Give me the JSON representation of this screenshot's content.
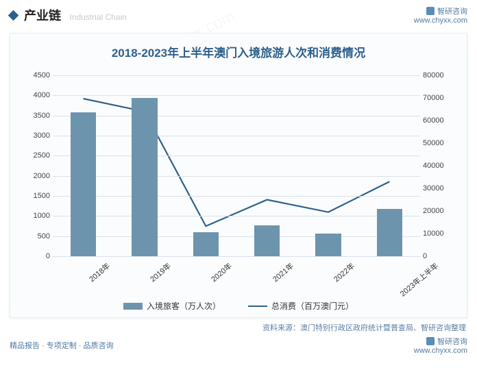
{
  "header": {
    "section_label": "产业链",
    "section_label_en": "Industrial Chain",
    "brand_name": "智研咨询",
    "brand_url": "www.chyxx.com"
  },
  "chart": {
    "type": "bar+line",
    "title": "2018-2023年上半年澳门入境旅游人次和消费情况",
    "background_color": "#fbfcfd",
    "grid_color": "#d9e2e9",
    "title_color": "#2d5f8b",
    "title_fontsize": 17,
    "label_fontsize": 11,
    "categories": [
      "2018年",
      "2019年",
      "2020年",
      "2021年",
      "2022年",
      "2023年上半年"
    ],
    "bar_series": {
      "name": "入境旅客（万人次）",
      "color": "#6d94ad",
      "values": [
        3580,
        3940,
        590,
        770,
        570,
        1180
      ],
      "bar_width_ratio": 0.42
    },
    "line_series": {
      "name": "总消费（百万澳门元）",
      "color": "#2d5f8b",
      "line_width": 2.2,
      "values": [
        69700,
        64000,
        13300,
        25000,
        19500,
        33000
      ]
    },
    "y_left": {
      "min": 0,
      "max": 4500,
      "step": 500
    },
    "y_right": {
      "min": 0,
      "max": 80000,
      "step": 10000
    },
    "x_label_rotate": -40
  },
  "source": {
    "prefix": "资料来源：",
    "text": "澳门特别行政区政府统计暨普查局、智研咨询整理"
  },
  "footer": {
    "left": "精品报告 · 专项定制 · 品质咨询",
    "brand_name": "智研咨询",
    "brand_url": "www.chyxx.com"
  }
}
